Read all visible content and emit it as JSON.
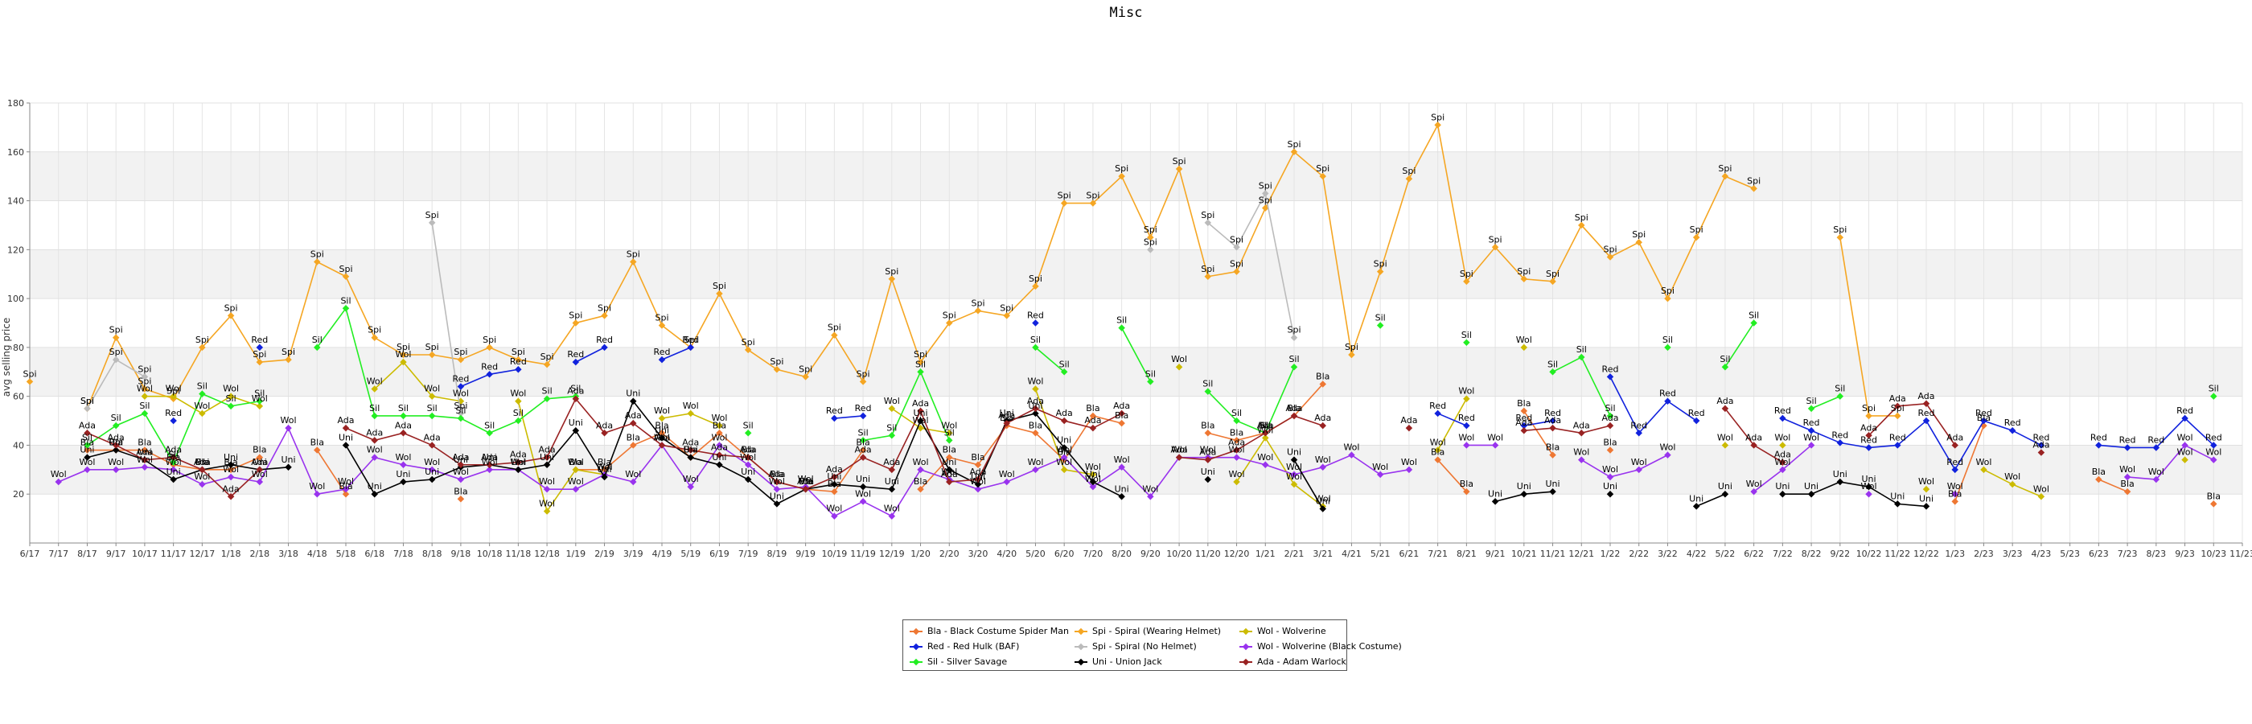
{
  "chart_data": {
    "type": "line",
    "title": "Misc",
    "ylabel": "avg selling price",
    "xlabel": "",
    "ylim": [
      0,
      180
    ],
    "yticks": [
      20,
      40,
      60,
      80,
      100,
      120,
      140,
      160,
      180
    ],
    "grid": true,
    "legend_position": "bottom-center",
    "x": [
      "6/17",
      "7/17",
      "8/17",
      "9/17",
      "10/17",
      "11/17",
      "12/17",
      "1/18",
      "2/18",
      "3/18",
      "4/18",
      "5/18",
      "6/18",
      "7/18",
      "8/18",
      "9/18",
      "10/18",
      "11/18",
      "12/18",
      "1/19",
      "2/19",
      "3/19",
      "4/19",
      "5/19",
      "6/19",
      "7/19",
      "8/19",
      "9/19",
      "10/19",
      "11/19",
      "12/19",
      "1/20",
      "2/20",
      "3/20",
      "4/20",
      "5/20",
      "6/20",
      "7/20",
      "8/20",
      "9/20",
      "10/20",
      "11/20",
      "12/20",
      "1/21",
      "2/21",
      "3/21",
      "4/21",
      "5/21",
      "6/21",
      "7/21",
      "8/21",
      "9/21",
      "10/21",
      "11/21",
      "12/21",
      "1/22",
      "2/22",
      "3/22",
      "4/22",
      "5/22",
      "6/22",
      "7/22",
      "8/22",
      "9/22",
      "10/22",
      "11/22",
      "12/22",
      "1/23",
      "2/23",
      "3/23",
      "4/23",
      "5/23",
      "6/23",
      "7/23",
      "8/23",
      "9/23",
      "10/23",
      "11/23"
    ],
    "series": [
      {
        "abbr": "Bla",
        "name": "Bla - Black Costume Spider Man",
        "color": "#ee7733",
        "values": [
          null,
          null,
          38,
          38,
          38,
          32,
          30,
          30,
          35,
          null,
          38,
          20,
          null,
          null,
          null,
          18,
          null,
          null,
          null,
          30,
          30,
          40,
          45,
          35,
          45,
          35,
          25,
          22,
          21,
          38,
          null,
          22,
          35,
          32,
          48,
          45,
          34,
          52,
          49,
          null,
          null,
          45,
          42,
          45,
          52,
          65,
          null,
          null,
          null,
          34,
          21,
          null,
          54,
          36,
          null,
          38,
          null,
          null,
          null,
          null,
          null,
          null,
          null,
          null,
          null,
          null,
          null,
          17,
          48,
          null,
          null,
          null,
          26,
          21,
          null,
          null,
          16,
          null
        ]
      },
      {
        "abbr": "Spi",
        "name": "Spi - Spiral (Wearing Helmet)",
        "color": "#f5a623",
        "values": [
          66,
          null,
          55,
          84,
          63,
          59,
          80,
          93,
          74,
          75,
          115,
          109,
          84,
          77,
          77,
          75,
          80,
          75,
          73,
          90,
          93,
          115,
          89,
          80,
          102,
          79,
          71,
          68,
          85,
          66,
          108,
          74,
          90,
          95,
          93,
          105,
          139,
          139,
          150,
          125,
          153,
          109,
          111,
          137,
          160,
          150,
          77,
          111,
          149,
          171,
          107,
          121,
          108,
          107,
          130,
          117,
          123,
          100,
          125,
          150,
          145,
          null,
          null,
          125,
          52,
          52,
          null,
          null,
          null,
          null,
          null,
          null,
          null,
          null,
          null,
          null,
          null,
          null
        ]
      },
      {
        "abbr": "Wol",
        "name": "Wol - Wolverine",
        "color": "#ccbb00",
        "values": [
          null,
          null,
          null,
          null,
          60,
          60,
          53,
          60,
          56,
          null,
          null,
          null,
          63,
          74,
          60,
          58,
          null,
          58,
          13,
          30,
          28,
          null,
          51,
          53,
          48,
          null,
          null,
          null,
          null,
          null,
          55,
          47,
          45,
          null,
          null,
          63,
          30,
          28,
          null,
          null,
          72,
          null,
          25,
          43,
          24,
          15,
          null,
          null,
          null,
          38,
          59,
          null,
          80,
          null,
          null,
          null,
          null,
          null,
          null,
          40,
          null,
          40,
          null,
          null,
          null,
          null,
          22,
          null,
          30,
          24,
          19,
          null,
          null,
          null,
          null,
          34,
          null,
          null
        ]
      },
      {
        "abbr": "Red",
        "name": "Red - Red Hulk (BAF)",
        "color": "#1122dd",
        "values": [
          null,
          null,
          null,
          null,
          null,
          50,
          null,
          null,
          80,
          null,
          null,
          null,
          null,
          null,
          null,
          64,
          69,
          71,
          null,
          74,
          80,
          null,
          75,
          80,
          null,
          null,
          null,
          null,
          51,
          52,
          null,
          null,
          null,
          null,
          null,
          90,
          null,
          null,
          null,
          null,
          null,
          null,
          null,
          null,
          null,
          null,
          null,
          null,
          null,
          53,
          48,
          null,
          48,
          50,
          null,
          68,
          45,
          58,
          50,
          null,
          null,
          51,
          46,
          41,
          39,
          40,
          50,
          30,
          50,
          46,
          40,
          null,
          40,
          39,
          39,
          51,
          40,
          null
        ]
      },
      {
        "abbr": "Spi",
        "name": "Spi - Spiral (No Helmet)",
        "color": "#bbbbbb",
        "values": [
          null,
          null,
          55,
          75,
          68,
          null,
          null,
          null,
          null,
          null,
          null,
          null,
          null,
          null,
          131,
          53,
          null,
          null,
          null,
          null,
          null,
          null,
          null,
          null,
          null,
          null,
          null,
          null,
          null,
          null,
          null,
          null,
          null,
          null,
          null,
          null,
          null,
          null,
          null,
          120,
          null,
          131,
          121,
          143,
          84,
          null,
          null,
          null,
          null,
          null,
          null,
          null,
          null,
          null,
          null,
          null,
          null,
          null,
          null,
          null,
          null,
          null,
          null,
          null,
          null,
          null,
          null,
          null,
          null,
          null,
          null,
          null,
          null,
          null,
          null,
          null,
          null,
          null
        ]
      },
      {
        "abbr": "Wol",
        "name": "Wol - Wolverine (Black Costume)",
        "color": "#9933ee",
        "values": [
          null,
          25,
          30,
          30,
          31,
          30,
          24,
          27,
          25,
          47,
          20,
          22,
          35,
          32,
          30,
          26,
          30,
          30,
          22,
          22,
          28,
          25,
          40,
          23,
          40,
          32,
          22,
          23,
          11,
          17,
          11,
          30,
          26,
          22,
          25,
          30,
          35,
          23,
          31,
          19,
          35,
          35,
          35,
          32,
          28,
          31,
          36,
          28,
          30,
          null,
          40,
          40,
          null,
          null,
          34,
          27,
          30,
          36,
          null,
          null,
          21,
          30,
          40,
          null,
          20,
          null,
          null,
          20,
          null,
          null,
          null,
          null,
          null,
          27,
          26,
          40,
          34,
          null
        ]
      },
      {
        "abbr": "Sil",
        "name": "Sil - Silver Savage",
        "color": "#22ee22",
        "values": [
          null,
          null,
          40,
          48,
          53,
          33,
          61,
          56,
          58,
          null,
          80,
          96,
          52,
          52,
          52,
          51,
          45,
          50,
          59,
          60,
          null,
          null,
          null,
          null,
          null,
          45,
          null,
          null,
          null,
          42,
          44,
          70,
          42,
          null,
          null,
          80,
          70,
          null,
          88,
          66,
          null,
          62,
          50,
          45,
          72,
          null,
          null,
          89,
          null,
          null,
          82,
          null,
          null,
          70,
          76,
          52,
          null,
          80,
          null,
          72,
          90,
          null,
          55,
          60,
          null,
          null,
          null,
          null,
          null,
          null,
          null,
          null,
          null,
          null,
          null,
          null,
          60,
          null
        ]
      },
      {
        "abbr": "Uni",
        "name": "Uni - Union Jack",
        "color": "#000000",
        "values": [
          null,
          null,
          35,
          38,
          34,
          26,
          30,
          32,
          30,
          31,
          null,
          40,
          20,
          25,
          26,
          31,
          32,
          30,
          32,
          46,
          27,
          58,
          43,
          35,
          32,
          26,
          16,
          22,
          24,
          23,
          22,
          50,
          30,
          24,
          50,
          53,
          39,
          25,
          19,
          null,
          null,
          26,
          null,
          null,
          34,
          14,
          null,
          null,
          null,
          null,
          null,
          17,
          20,
          21,
          null,
          20,
          null,
          null,
          15,
          20,
          null,
          20,
          20,
          25,
          23,
          16,
          15,
          null,
          null,
          null,
          null,
          null,
          null,
          null,
          null,
          null,
          null,
          null
        ]
      },
      {
        "abbr": "Ada",
        "name": "Ada - Adam Warlock",
        "color": "#992222",
        "values": [
          null,
          null,
          45,
          40,
          34,
          35,
          30,
          19,
          30,
          null,
          null,
          47,
          42,
          45,
          40,
          32,
          32,
          33,
          35,
          59,
          45,
          49,
          40,
          38,
          36,
          35,
          25,
          22,
          27,
          35,
          30,
          54,
          25,
          26,
          49,
          55,
          50,
          47,
          53,
          null,
          35,
          34,
          38,
          45,
          52,
          48,
          null,
          null,
          47,
          null,
          null,
          null,
          46,
          47,
          45,
          48,
          null,
          null,
          null,
          55,
          40,
          33,
          null,
          null,
          44,
          56,
          57,
          40,
          null,
          null,
          37,
          null,
          null,
          null,
          null,
          null,
          null,
          null
        ]
      }
    ]
  }
}
